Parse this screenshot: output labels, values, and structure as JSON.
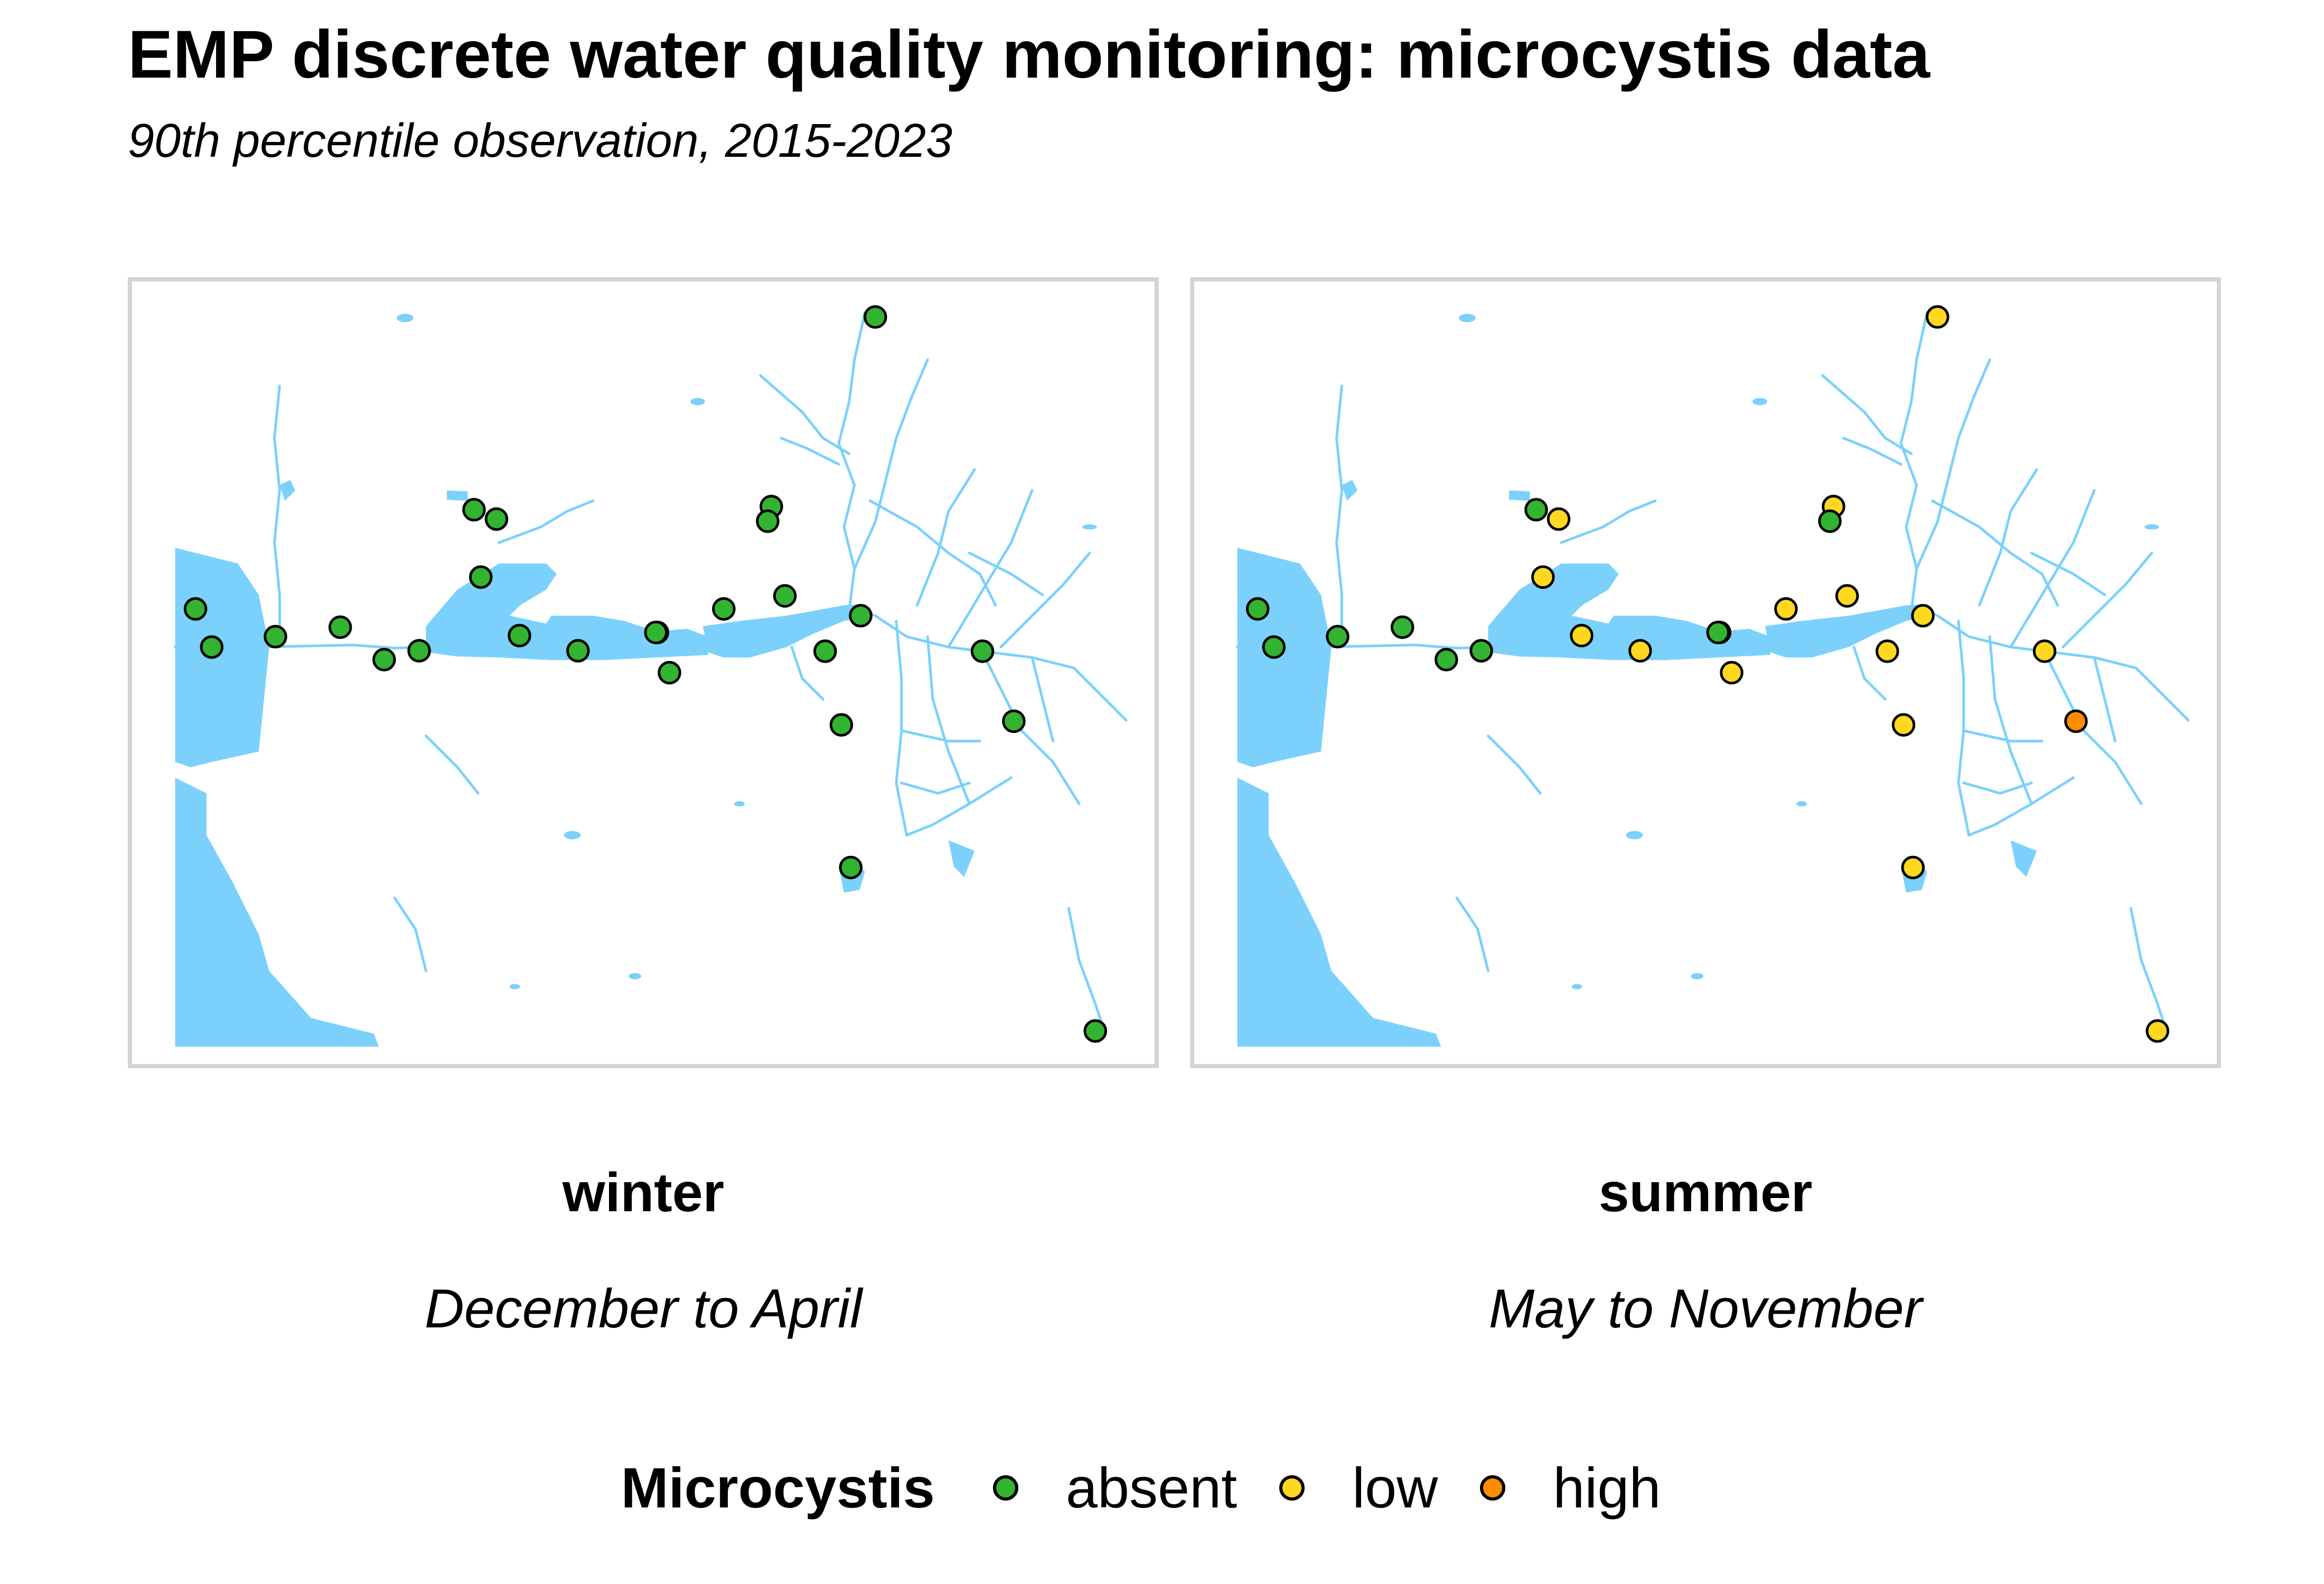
{
  "title": "EMP discrete water quality monitoring: microcystis data",
  "subtitle": "90th percentile observation, 2015-2023",
  "colors": {
    "water": "#7bd1fb",
    "absent": "#32b432",
    "low": "#ffd81f",
    "high": "#ff8c00",
    "frame": "#d4d4d4"
  },
  "legend": {
    "title": "Microcystis",
    "items": [
      {
        "key": "absent",
        "label": "absent"
      },
      {
        "key": "low",
        "label": "low"
      },
      {
        "key": "high",
        "label": "high"
      }
    ]
  },
  "panels": [
    {
      "season": "winter",
      "months": "December to April",
      "levels": [
        "absent",
        "absent",
        "absent",
        "absent",
        "absent",
        "absent",
        "absent",
        "absent",
        "absent",
        "absent",
        "absent",
        "absent",
        "absent",
        "absent",
        "absent",
        "absent",
        "absent",
        "absent",
        "absent",
        "absent",
        "absent",
        "absent",
        "absent",
        "absent",
        "absent",
        "absent"
      ]
    },
    {
      "season": "summer",
      "months": "May to November",
      "levels": [
        "absent",
        "absent",
        "absent",
        "absent",
        "absent",
        "absent",
        "absent",
        "low",
        "low",
        "low",
        "low",
        "low",
        "low",
        "low",
        "low",
        "absent",
        "low",
        "low",
        "low",
        "low",
        "low",
        "low",
        "high",
        "low",
        "low",
        "absent"
      ]
    }
  ]
}
